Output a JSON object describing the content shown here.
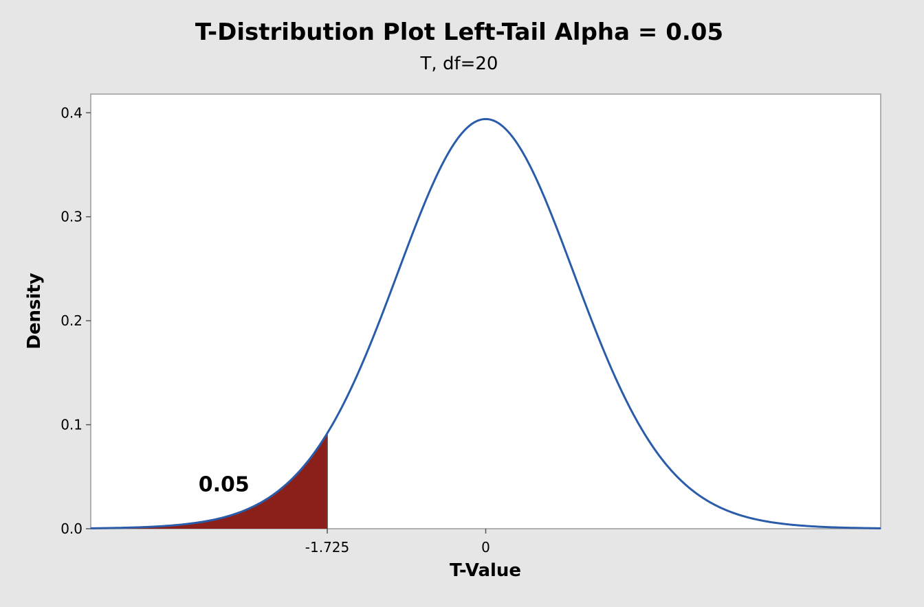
{
  "chart_data": {
    "type": "area",
    "title": "T-Distribution Plot Left-Tail Alpha = 0.05",
    "subtitle": "T, df=20",
    "xlabel": "T-Value",
    "ylabel": "Density",
    "distribution": "T",
    "df": 20,
    "xlim": [
      -4.3,
      4.3
    ],
    "ylim": [
      0,
      0.418
    ],
    "y_ticks": [
      "0.0",
      "0.1",
      "0.2",
      "0.3",
      "0.4"
    ],
    "x_ticks": [
      {
        "value": -1.725,
        "label": "-1.725"
      },
      {
        "value": 0,
        "label": "0"
      }
    ],
    "shaded_region": {
      "from": -4.3,
      "to": -1.725,
      "area_label": "0.05"
    },
    "grid": false,
    "colors": {
      "curve": "#2a5caa",
      "fill": "#8b1f1a",
      "plot_bg": "#ffffff",
      "page_bg": "#e6e6e6"
    }
  }
}
